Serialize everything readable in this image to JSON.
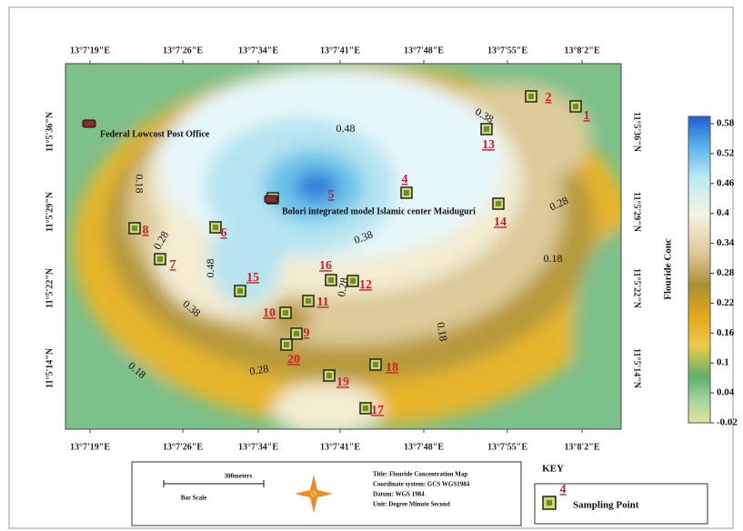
{
  "map": {
    "x_axis_labels": [
      "13°7'19\"E",
      "13°7'26\"E",
      "13°7'34\"E",
      "13°7'41\"E",
      "13°7'48\"E",
      "13°7'55\"E",
      "13°8'2\"E"
    ],
    "y_axis_labels": [
      "11°5'36\"N",
      "11°5'29\"N",
      "11°5'22\"N",
      "11°5'14\"N"
    ],
    "places": [
      "Federal Lowcost Post Office",
      "Bolori integrated model Islamic center Maiduguri"
    ],
    "sampling_points": [
      "1",
      "2",
      "13",
      "4",
      "5",
      "14",
      "6",
      "8",
      "7",
      "15",
      "16",
      "12",
      "11",
      "10",
      "9",
      "20",
      "19",
      "18",
      "17"
    ],
    "contour_labels": [
      "0.48",
      "0.38",
      "0.18",
      "0.28",
      "0.38",
      "0.28",
      "0.18",
      "0.48",
      "0.38",
      "0.18",
      "0.28",
      "0.18",
      "0.28"
    ]
  },
  "colorbar": {
    "title": "Flouride Conc",
    "ticks": [
      "0.58",
      "0.52",
      "0.46",
      "0.4",
      "0.34",
      "0.28",
      "0.22",
      "0.16",
      "0.1",
      "0.04",
      "-0.02"
    ]
  },
  "legend": {
    "scale_label": "300meters",
    "bar_scale": "Bar Scale",
    "info": [
      "Title: Flouride Concentration Map",
      "Coordinate system: GCS WGS1984",
      "Datum: WGS 1984",
      "Unit: Degree Minute Second"
    ],
    "key_title": "KEY",
    "key_number": "4",
    "key_label": "Sampling Point"
  }
}
